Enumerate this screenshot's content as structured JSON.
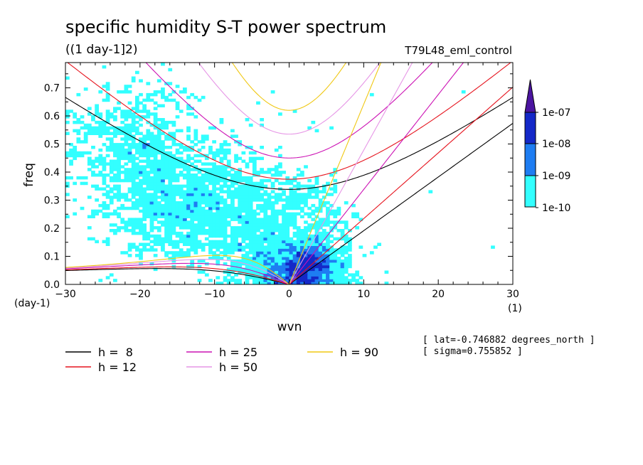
{
  "chart_data": {
    "type": "heatmap",
    "title": "specific humidity S-T power spectrum",
    "subtitle": "((1 day-1]2)",
    "run_label": "T79L48_eml_control",
    "xlabel": "wvn",
    "ylabel": "freq",
    "x_unit": "(1)",
    "y_unit": "(day-1)",
    "xlim": [
      -30,
      30
    ],
    "ylim": [
      0,
      0.79
    ],
    "x_ticks": [
      "-30",
      "-20",
      "-10",
      "0",
      "10",
      "20",
      "30"
    ],
    "y_ticks": [
      "0.0",
      "0.1",
      "0.2",
      "0.3",
      "0.4",
      "0.5",
      "0.6",
      "0.7"
    ],
    "colorbar": {
      "labels": [
        "1e-10",
        "1e-09",
        "1e-08",
        "1e-07"
      ],
      "colors": [
        "#33ffff",
        "#1e7df2",
        "#1428c8",
        "#4b14a0"
      ]
    },
    "dispersion_curves": [
      {
        "label": "h =  8",
        "h": 8,
        "color": "#000000"
      },
      {
        "label": "h = 12",
        "h": 12,
        "color": "#e6141e"
      },
      {
        "label": "h = 25",
        "h": 25,
        "color": "#cc12b4"
      },
      {
        "label": "h = 50",
        "h": 50,
        "color": "#e696e6"
      },
      {
        "label": "h = 90",
        "h": 90,
        "color": "#f0c814"
      }
    ],
    "annotations": [
      "[ lat=-0.746882 degrees_north ]",
      "[ sigma=0.755852 ]"
    ]
  }
}
